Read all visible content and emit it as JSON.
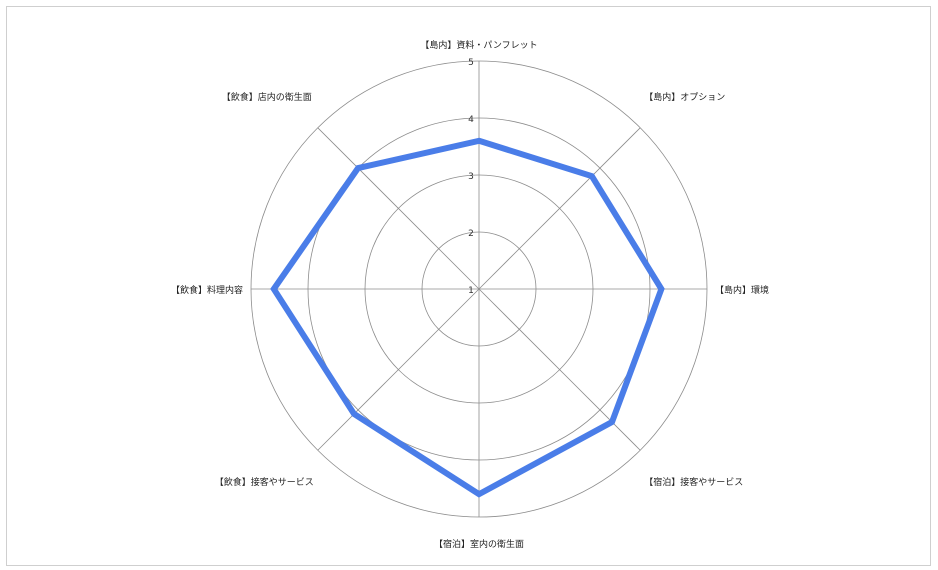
{
  "chart_data": {
    "type": "radar",
    "categories": [
      "【島内】資料・パンフレット",
      "【島内】オプション",
      "【島内】環境",
      "【宿泊】接客やサービス",
      "【宿泊】室内の衛生面",
      "【飲食】接客やサービス",
      "【飲食】料理内容",
      "【飲食】店内の衛生面"
    ],
    "series": [
      {
        "values": [
          3.6,
          3.8,
          4.2,
          4.3,
          4.6,
          4.1,
          4.6,
          4.0
        ]
      }
    ],
    "rlim": [
      1,
      5
    ],
    "ticks": [
      "1",
      "2",
      "3",
      "4",
      "5"
    ],
    "grid": true,
    "legend": "none",
    "colors": {
      "series": "#4a7de8",
      "grid": "#8c8c8c"
    }
  }
}
